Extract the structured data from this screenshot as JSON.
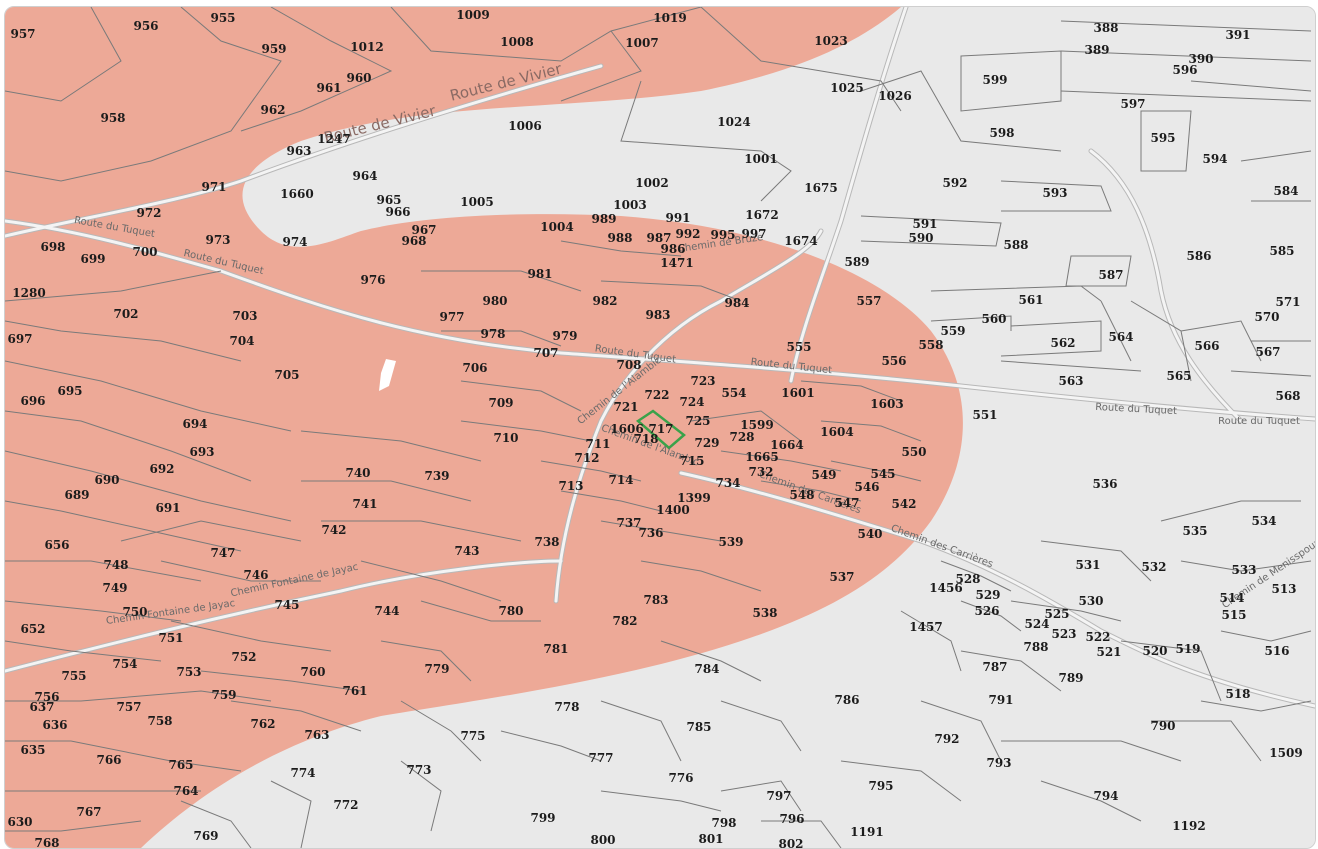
{
  "map": {
    "zone_color": "#eda997",
    "background_color": "#e9e9e9",
    "highlight_color": "#3aa24a",
    "highlighted_parcel": "717"
  },
  "roads": [
    {
      "name": "route-de-vivier-1",
      "text": "Route de Vivier"
    },
    {
      "name": "route-de-vivier-2",
      "text": "Route de Vivier"
    },
    {
      "name": "route-du-tuquet-1",
      "text": "Route du Tuquet"
    },
    {
      "name": "route-du-tuquet-2",
      "text": "Route du Tuquet"
    },
    {
      "name": "route-du-tuquet-3",
      "text": "Route du Tuquet"
    },
    {
      "name": "route-du-tuquet-4",
      "text": "Route du Tuquet"
    },
    {
      "name": "route-du-tuquet-5",
      "text": "Route du Tuquet"
    },
    {
      "name": "route-du-tuquet-6",
      "text": "Route du Tuquet"
    },
    {
      "name": "chemin-de-lalambic-1",
      "text": "Chemin de l'Alambic"
    },
    {
      "name": "chemin-de-lalambic-2",
      "text": "Chemin de l'Alambic"
    },
    {
      "name": "chemin-de-bruze",
      "text": "Chemin de Bruze"
    },
    {
      "name": "chemin-des-carrieres-1",
      "text": "Chemin des Carrières"
    },
    {
      "name": "chemin-des-carrieres-2",
      "text": "Chemin des Carrières"
    },
    {
      "name": "chemin-fontaine-de-jayac-1",
      "text": "Chemin Fontaine de Jayac"
    },
    {
      "name": "chemin-fontaine-de-jayac-2",
      "text": "Chemin Fontaine de Jayac"
    },
    {
      "name": "chemin-de-menisspoux",
      "text": "Chemin de Menisspoux"
    }
  ],
  "parcels": [
    "1009",
    "1019",
    "955",
    "956",
    "957",
    "959",
    "1012",
    "1008",
    "1007",
    "1023",
    "388",
    "391",
    "389",
    "390",
    "596",
    "960",
    "961",
    "958",
    "962",
    "1247",
    "963",
    "1006",
    "1025",
    "1026",
    "599",
    "597",
    "595",
    "1024",
    "598",
    "594",
    "1001",
    "964",
    "971",
    "1660",
    "965",
    "966",
    "1005",
    "1002",
    "1675",
    "592",
    "593",
    "584",
    "972",
    "973",
    "974",
    "967",
    "968",
    "1003",
    "989",
    "991",
    "1672",
    "1004",
    "988",
    "987",
    "992",
    "995",
    "997",
    "1674",
    "591",
    "590",
    "588",
    "986",
    "1471",
    "589",
    "586",
    "585",
    "698",
    "699",
    "700",
    "976",
    "981",
    "587",
    "1280",
    "980",
    "982",
    "983",
    "984",
    "557",
    "561",
    "571",
    "570",
    "702",
    "703",
    "704",
    "977",
    "978",
    "979",
    "707",
    "559",
    "560",
    "562",
    "564",
    "566",
    "567",
    "697",
    "555",
    "556",
    "558",
    "708",
    "706",
    "705",
    "723",
    "554",
    "1601",
    "563",
    "565",
    "696",
    "695",
    "709",
    "722",
    "724",
    "721",
    "1603",
    "551",
    "568",
    "694",
    "725",
    "1599",
    "717",
    "1606",
    "728",
    "1604",
    "710",
    "711",
    "718",
    "729",
    "1664",
    "550",
    "693",
    "712",
    "715",
    "1665",
    "732",
    "536",
    "692",
    "740",
    "739",
    "714",
    "713",
    "734",
    "549",
    "545",
    "690",
    "546",
    "689",
    "691",
    "741",
    "1399",
    "548",
    "547",
    "542",
    "1400",
    "737",
    "736",
    "540",
    "742",
    "738",
    "539",
    "535",
    "534",
    "656",
    "747",
    "743",
    "748",
    "746",
    "537",
    "531",
    "532",
    "533",
    "749",
    "528",
    "1456",
    "529",
    "513",
    "745",
    "526",
    "530",
    "514",
    "750",
    "744",
    "783",
    "780",
    "515",
    "652",
    "538",
    "782",
    "525",
    "751",
    "524",
    "1457",
    "523",
    "522",
    "752",
    "781",
    "788",
    "521",
    "520",
    "519",
    "516",
    "754",
    "753",
    "760",
    "779",
    "787",
    "755",
    "761",
    "784",
    "789",
    "756",
    "759",
    "786",
    "518",
    "637",
    "757",
    "791",
    "636",
    "758",
    "762",
    "778",
    "763",
    "785",
    "792",
    "790",
    "635",
    "775",
    "1509",
    "766",
    "765",
    "793",
    "777",
    "773",
    "774",
    "776",
    "764",
    "794",
    "772",
    "797",
    "795",
    "767",
    "799",
    "798",
    "796",
    "1191",
    "1192",
    "630",
    "769",
    "800",
    "801",
    "768",
    "802"
  ]
}
